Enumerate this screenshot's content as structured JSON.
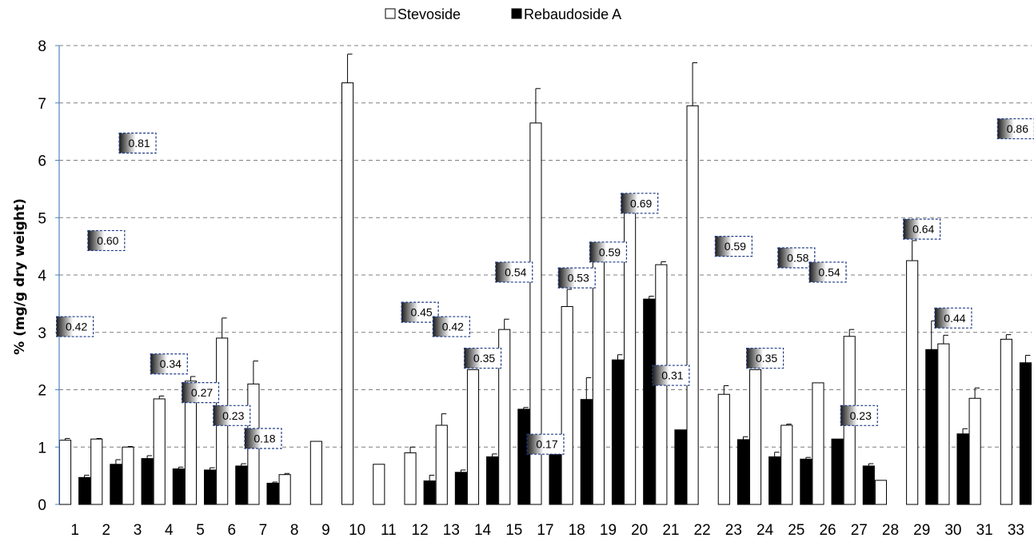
{
  "chart_data": {
    "type": "bar",
    "ylabel": "% (mg/g dry weight)",
    "xlabel": "",
    "ylim": [
      0,
      8
    ],
    "yticks": [
      "0",
      "1",
      "2",
      "3",
      "4",
      "5",
      "6",
      "7",
      "8"
    ],
    "grid": "horizontal dashed",
    "legend_position": "top-center",
    "categories": [
      "1",
      "2",
      "3",
      "4",
      "5",
      "6",
      "7",
      "8",
      "9",
      "10",
      "11",
      "12",
      "13",
      "14",
      "15",
      "17",
      "18",
      "19",
      "20",
      "21",
      "22",
      "23",
      "24",
      "25",
      "26",
      "27",
      "28",
      "29",
      "30",
      "31",
      "33"
    ],
    "series": [
      {
        "name": "Stevoside",
        "color": "#ffffff",
        "values": [
          1.12,
          1.14,
          1.0,
          1.84,
          2.15,
          2.9,
          2.1,
          0.52,
          1.1,
          7.35,
          0.7,
          0.9,
          1.38,
          2.35,
          3.05,
          6.65,
          3.45,
          4.25,
          5.15,
          4.18,
          6.95,
          1.92,
          2.35,
          1.38,
          2.12,
          2.93,
          0.42,
          4.25,
          2.8,
          1.85,
          2.88
        ],
        "errors": [
          0.03,
          0.01,
          0.01,
          0.05,
          0.08,
          0.35,
          0.4,
          0.02,
          0.0,
          0.5,
          0.0,
          0.1,
          0.2,
          0.0,
          0.18,
          0.6,
          0.3,
          0.0,
          0.0,
          0.05,
          0.75,
          0.15,
          0.0,
          0.02,
          0.0,
          0.12,
          0.0,
          0.35,
          0.15,
          0.18,
          0.08
        ]
      },
      {
        "name": "Rebaudoside A",
        "color": "#000000",
        "values": [
          0.47,
          0.7,
          0.8,
          0.62,
          0.6,
          0.67,
          0.37,
          null,
          null,
          null,
          null,
          0.41,
          0.56,
          0.83,
          1.66,
          0.92,
          1.83,
          2.52,
          3.58,
          1.3,
          null,
          1.13,
          0.83,
          0.79,
          1.14,
          0.67,
          null,
          2.7,
          1.23,
          null,
          2.47
        ],
        "errors": [
          0.04,
          0.08,
          0.05,
          0.03,
          0.04,
          0.04,
          0.02,
          null,
          null,
          null,
          null,
          0.1,
          0.04,
          0.05,
          0.03,
          0.0,
          0.38,
          0.09,
          0.05,
          0.0,
          null,
          0.05,
          0.08,
          0.03,
          0.0,
          0.04,
          null,
          0.5,
          0.09,
          null,
          0.13
        ]
      }
    ],
    "annotations": [
      {
        "category": "1",
        "text": "0.42",
        "y": 3.1
      },
      {
        "category": "2",
        "text": "0.60",
        "y": 4.6
      },
      {
        "category": "3",
        "text": "0.81",
        "y": 6.3
      },
      {
        "category": "4",
        "text": "0.34",
        "y": 2.45
      },
      {
        "category": "5",
        "text": "0.27",
        "y": 1.95
      },
      {
        "category": "6",
        "text": "0.23",
        "y": 1.55
      },
      {
        "category": "7",
        "text": "0.18",
        "y": 1.15
      },
      {
        "category": "12",
        "text": "0.45",
        "y": 3.35
      },
      {
        "category": "13",
        "text": "0.42",
        "y": 3.1
      },
      {
        "category": "14",
        "text": "0.35",
        "y": 2.55
      },
      {
        "category": "15",
        "text": "0.54",
        "y": 4.05
      },
      {
        "category": "17",
        "text": "0.17",
        "y": 1.05
      },
      {
        "category": "18",
        "text": "0.53",
        "y": 3.95
      },
      {
        "category": "19",
        "text": "0.59",
        "y": 4.4
      },
      {
        "category": "20",
        "text": "0.69",
        "y": 5.25
      },
      {
        "category": "21",
        "text": "0.31",
        "y": 2.25
      },
      {
        "category": "23",
        "text": "0.59",
        "y": 4.5
      },
      {
        "category": "24",
        "text": "0.35",
        "y": 2.55
      },
      {
        "category": "25",
        "text": "0.58",
        "y": 4.3
      },
      {
        "category": "26",
        "text": "0.54",
        "y": 4.05
      },
      {
        "category": "27",
        "text": "0.23",
        "y": 1.55
      },
      {
        "category": "29",
        "text": "0.64",
        "y": 4.8
      },
      {
        "category": "30",
        "text": "0.44",
        "y": 3.25
      },
      {
        "category": "33",
        "text": "0.86",
        "y": 6.55
      }
    ]
  }
}
